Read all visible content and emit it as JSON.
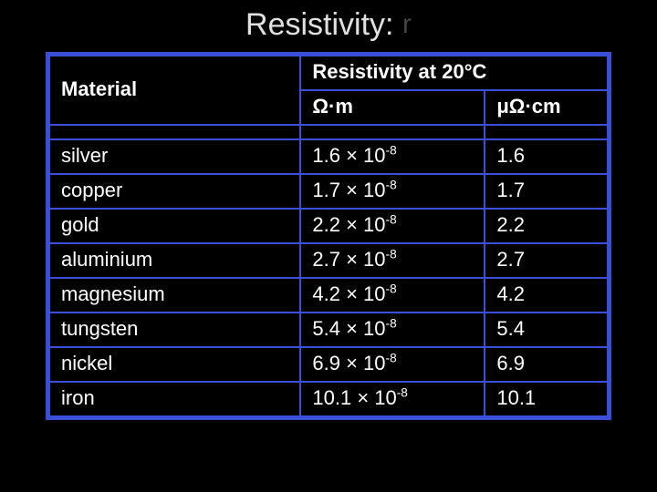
{
  "title": {
    "word": "Resistivity:",
    "symbol": "r",
    "word_color": "#e0e0e0",
    "symbol_color": "#444444",
    "fontsize": 34
  },
  "table": {
    "border_color": "#3a4fd8",
    "background_color": "#000000",
    "text_color": "#ffffff",
    "header_fontsize": 22,
    "cell_fontsize": 22,
    "col_widths": [
      "45%",
      "33%",
      "22%"
    ],
    "headers": {
      "material": "Material",
      "group": "Resistivity at 20°C",
      "unit1": "Ω·m",
      "unit2": "μΩ·cm"
    },
    "rows": [
      {
        "material": "silver",
        "ohm_m_base": "1.6",
        "ohm_m_exp": "-8",
        "uohm_cm": "1.6"
      },
      {
        "material": "copper",
        "ohm_m_base": "1.7",
        "ohm_m_exp": "-8",
        "uohm_cm": "1.7"
      },
      {
        "material": "gold",
        "ohm_m_base": "2.2",
        "ohm_m_exp": "-8",
        "uohm_cm": "2.2"
      },
      {
        "material": "aluminium",
        "ohm_m_base": "2.7",
        "ohm_m_exp": "-8",
        "uohm_cm": "2.7"
      },
      {
        "material": "magnesium",
        "ohm_m_base": "4.2",
        "ohm_m_exp": "-8",
        "uohm_cm": "4.2"
      },
      {
        "material": "tungsten",
        "ohm_m_base": "5.4",
        "ohm_m_exp": "-8",
        "uohm_cm": "5.4"
      },
      {
        "material": "nickel",
        "ohm_m_base": "6.9",
        "ohm_m_exp": "-8",
        "uohm_cm": "6.9"
      },
      {
        "material": "iron",
        "ohm_m_base": "10.1",
        "ohm_m_exp": "-8",
        "uohm_cm": "10.1"
      }
    ]
  }
}
